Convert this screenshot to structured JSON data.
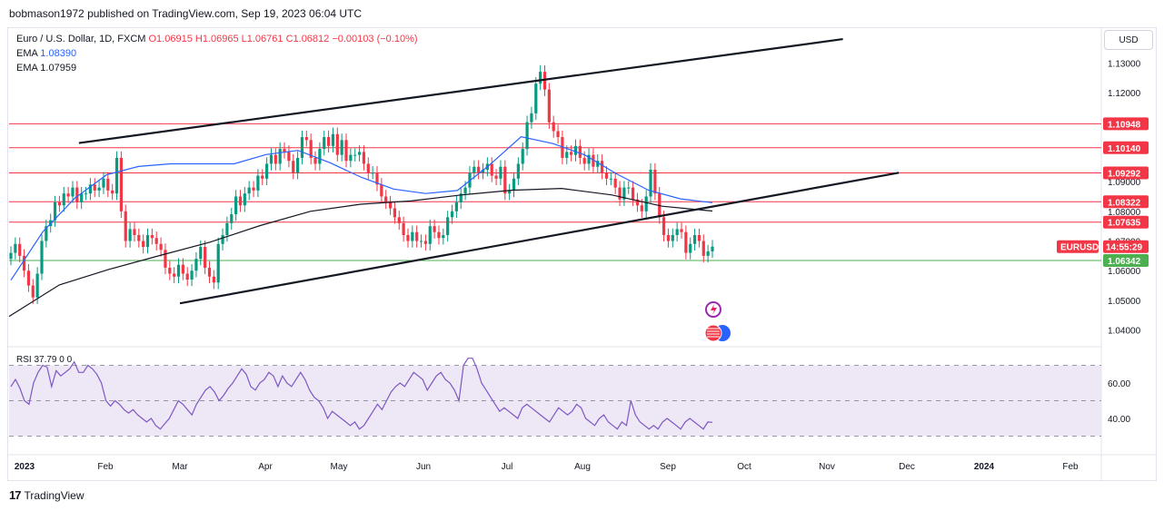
{
  "header": {
    "text": "bobmason1972 published on TradingView.com, Sep 19, 2023 06:04 UTC"
  },
  "legend": {
    "title": "Euro / U.S. Dollar, 1D, FXCM",
    "ohlc": "O1.06915 H1.06965 L1.06761 C1.06812 −0.00103 (−0.10%)",
    "ema1_label": "EMA",
    "ema1_value": "1.08390",
    "ema2_label": "EMA",
    "ema2_value": "1.07959"
  },
  "currency": "USD",
  "rsi_label": "RSI 37.79 0 0",
  "footer": {
    "brand": "TradingView",
    "logo": "17"
  },
  "colors": {
    "up": "#089981",
    "down": "#f23645",
    "ema_fast": "#2962ff",
    "ema_slow": "#131722",
    "rsi": "#7e57c2",
    "rsi_band": "#ede7f6",
    "level_red": "#f23645",
    "level_green": "#4caf50"
  },
  "chart_data": {
    "type": "candlestick",
    "symbol": "EURUSD",
    "price_axis": {
      "ticks": [
        "1.13000",
        "1.12000",
        "1.11000",
        "1.09000",
        "1.08000",
        "1.07000",
        "1.06000",
        "1.05000",
        "1.04000"
      ],
      "ylim": [
        1.035,
        1.142
      ]
    },
    "time_axis": {
      "ticks": [
        "2023",
        "Feb",
        "Mar",
        "Apr",
        "May",
        "Jun",
        "Jul",
        "Aug",
        "Sep",
        "Oct",
        "Nov",
        "Dec",
        "2024",
        "Feb"
      ]
    },
    "horizontal_levels": [
      {
        "value": 1.10948,
        "label": "1.10948",
        "color": "red"
      },
      {
        "value": 1.1014,
        "label": "1.10140",
        "color": "red"
      },
      {
        "value": 1.09292,
        "label": "1.09292",
        "color": "red"
      },
      {
        "value": 1.08322,
        "label": "1.08322",
        "color": "red"
      },
      {
        "value": 1.07635,
        "label": "1.07635",
        "color": "red"
      },
      {
        "value": 1.06342,
        "label": "1.06342",
        "color": "green"
      }
    ],
    "price_badge": {
      "symbol": "EURUSD",
      "countdown": "14:55:29"
    },
    "closes": [
      1.066,
      1.069,
      1.065,
      1.06,
      1.055,
      1.051,
      1.059,
      1.07,
      1.075,
      1.077,
      1.083,
      1.082,
      1.086,
      1.085,
      1.088,
      1.083,
      1.086,
      1.086,
      1.089,
      1.087,
      1.088,
      1.091,
      1.087,
      1.086,
      1.098,
      1.08,
      1.07,
      1.074,
      1.072,
      1.07,
      1.068,
      1.072,
      1.071,
      1.069,
      1.067,
      1.061,
      1.059,
      1.058,
      1.062,
      1.059,
      1.057,
      1.06,
      1.064,
      1.068,
      1.061,
      1.058,
      1.056,
      1.069,
      1.072,
      1.076,
      1.079,
      1.085,
      1.082,
      1.086,
      1.088,
      1.087,
      1.092,
      1.091,
      1.096,
      1.099,
      1.096,
      1.101,
      1.1,
      1.097,
      1.093,
      1.098,
      1.105,
      1.104,
      1.098,
      1.096,
      1.101,
      1.105,
      1.102,
      1.106,
      1.099,
      1.104,
      1.097,
      1.099,
      1.099,
      1.1,
      1.096,
      1.093,
      1.093,
      1.089,
      1.085,
      1.083,
      1.081,
      1.078,
      1.076,
      1.072,
      1.07,
      1.073,
      1.07,
      1.07,
      1.069,
      1.075,
      1.073,
      1.071,
      1.072,
      1.078,
      1.08,
      1.083,
      1.086,
      1.088,
      1.093,
      1.095,
      1.093,
      1.094,
      1.096,
      1.092,
      1.091,
      1.095,
      1.086,
      1.087,
      1.091,
      1.096,
      1.101,
      1.11,
      1.113,
      1.123,
      1.127,
      1.121,
      1.11,
      1.107,
      1.105,
      1.098,
      1.1,
      1.099,
      1.102,
      1.098,
      1.096,
      1.099,
      1.095,
      1.097,
      1.093,
      1.091,
      1.091,
      1.088,
      1.084,
      1.088,
      1.088,
      1.084,
      1.082,
      1.08,
      1.085,
      1.094,
      1.086,
      1.078,
      1.072,
      1.07,
      1.072,
      1.074,
      1.073,
      1.066,
      1.069,
      1.072,
      1.07,
      1.065,
      1.0665,
      1.0681
    ],
    "ema_fast_values": [
      1.0568,
      1.0731,
      1.0844,
      1.0923,
      1.0951,
      1.096,
      1.096,
      1.096,
      1.0991,
      1.1005,
      1.0964,
      1.0914,
      1.0875,
      1.086,
      1.087,
      1.0955,
      1.1051,
      1.1028,
      1.099,
      1.0926,
      1.0871,
      1.0842,
      1.0829
    ],
    "ema_slow_values": [
      1.0446,
      1.0552,
      1.0605,
      1.0651,
      1.0696,
      1.0752,
      1.08,
      1.0824,
      1.0835,
      1.0855,
      1.0871,
      1.0877,
      1.0855,
      1.0817,
      1.0801
    ],
    "trendlines": [
      {
        "from": {
          "date": "Jan 24",
          "price": 1.103
        },
        "to": {
          "date": "Nov 7",
          "price": 1.138
        }
      },
      {
        "from": {
          "date": "Mar 1",
          "price": 1.049
        },
        "to": {
          "date": "Nov 28",
          "price": 1.093
        }
      }
    ],
    "rsi": {
      "label": "RSI",
      "value": 37.79,
      "ticks": [
        "60.00",
        "40.00"
      ],
      "ylim": [
        20,
        80
      ],
      "bands": [
        70,
        50,
        30
      ],
      "values": [
        58,
        62,
        57,
        50,
        48,
        60,
        66,
        70,
        69,
        58,
        67,
        64,
        66,
        68,
        72,
        66,
        66,
        70,
        68,
        65,
        60,
        50,
        47,
        50,
        48,
        45,
        43,
        45,
        42,
        40,
        38,
        40,
        36,
        34,
        37,
        40,
        45,
        50,
        48,
        45,
        42,
        48,
        52,
        56,
        58,
        55,
        50,
        53,
        57,
        60,
        64,
        68,
        65,
        58,
        56,
        60,
        62,
        66,
        64,
        58,
        64,
        60,
        58,
        62,
        66,
        62,
        56,
        52,
        50,
        46,
        40,
        44,
        42,
        40,
        38,
        36,
        38,
        34,
        36,
        40,
        44,
        48,
        45,
        50,
        55,
        58,
        60,
        58,
        62,
        66,
        64,
        62,
        56,
        60,
        64,
        66,
        62,
        60,
        56,
        50,
        70,
        74,
        74,
        68,
        60,
        56,
        52,
        48,
        44,
        46,
        44,
        42,
        40,
        46,
        48,
        46,
        44,
        42,
        40,
        38,
        42,
        46,
        44,
        42,
        44,
        48,
        46,
        40,
        38,
        36,
        40,
        42,
        38,
        36,
        34,
        38,
        36,
        50,
        42,
        38,
        36,
        34,
        36,
        34,
        38,
        40,
        38,
        36,
        34,
        38,
        40,
        38,
        36,
        34,
        38,
        37.79
      ]
    }
  }
}
